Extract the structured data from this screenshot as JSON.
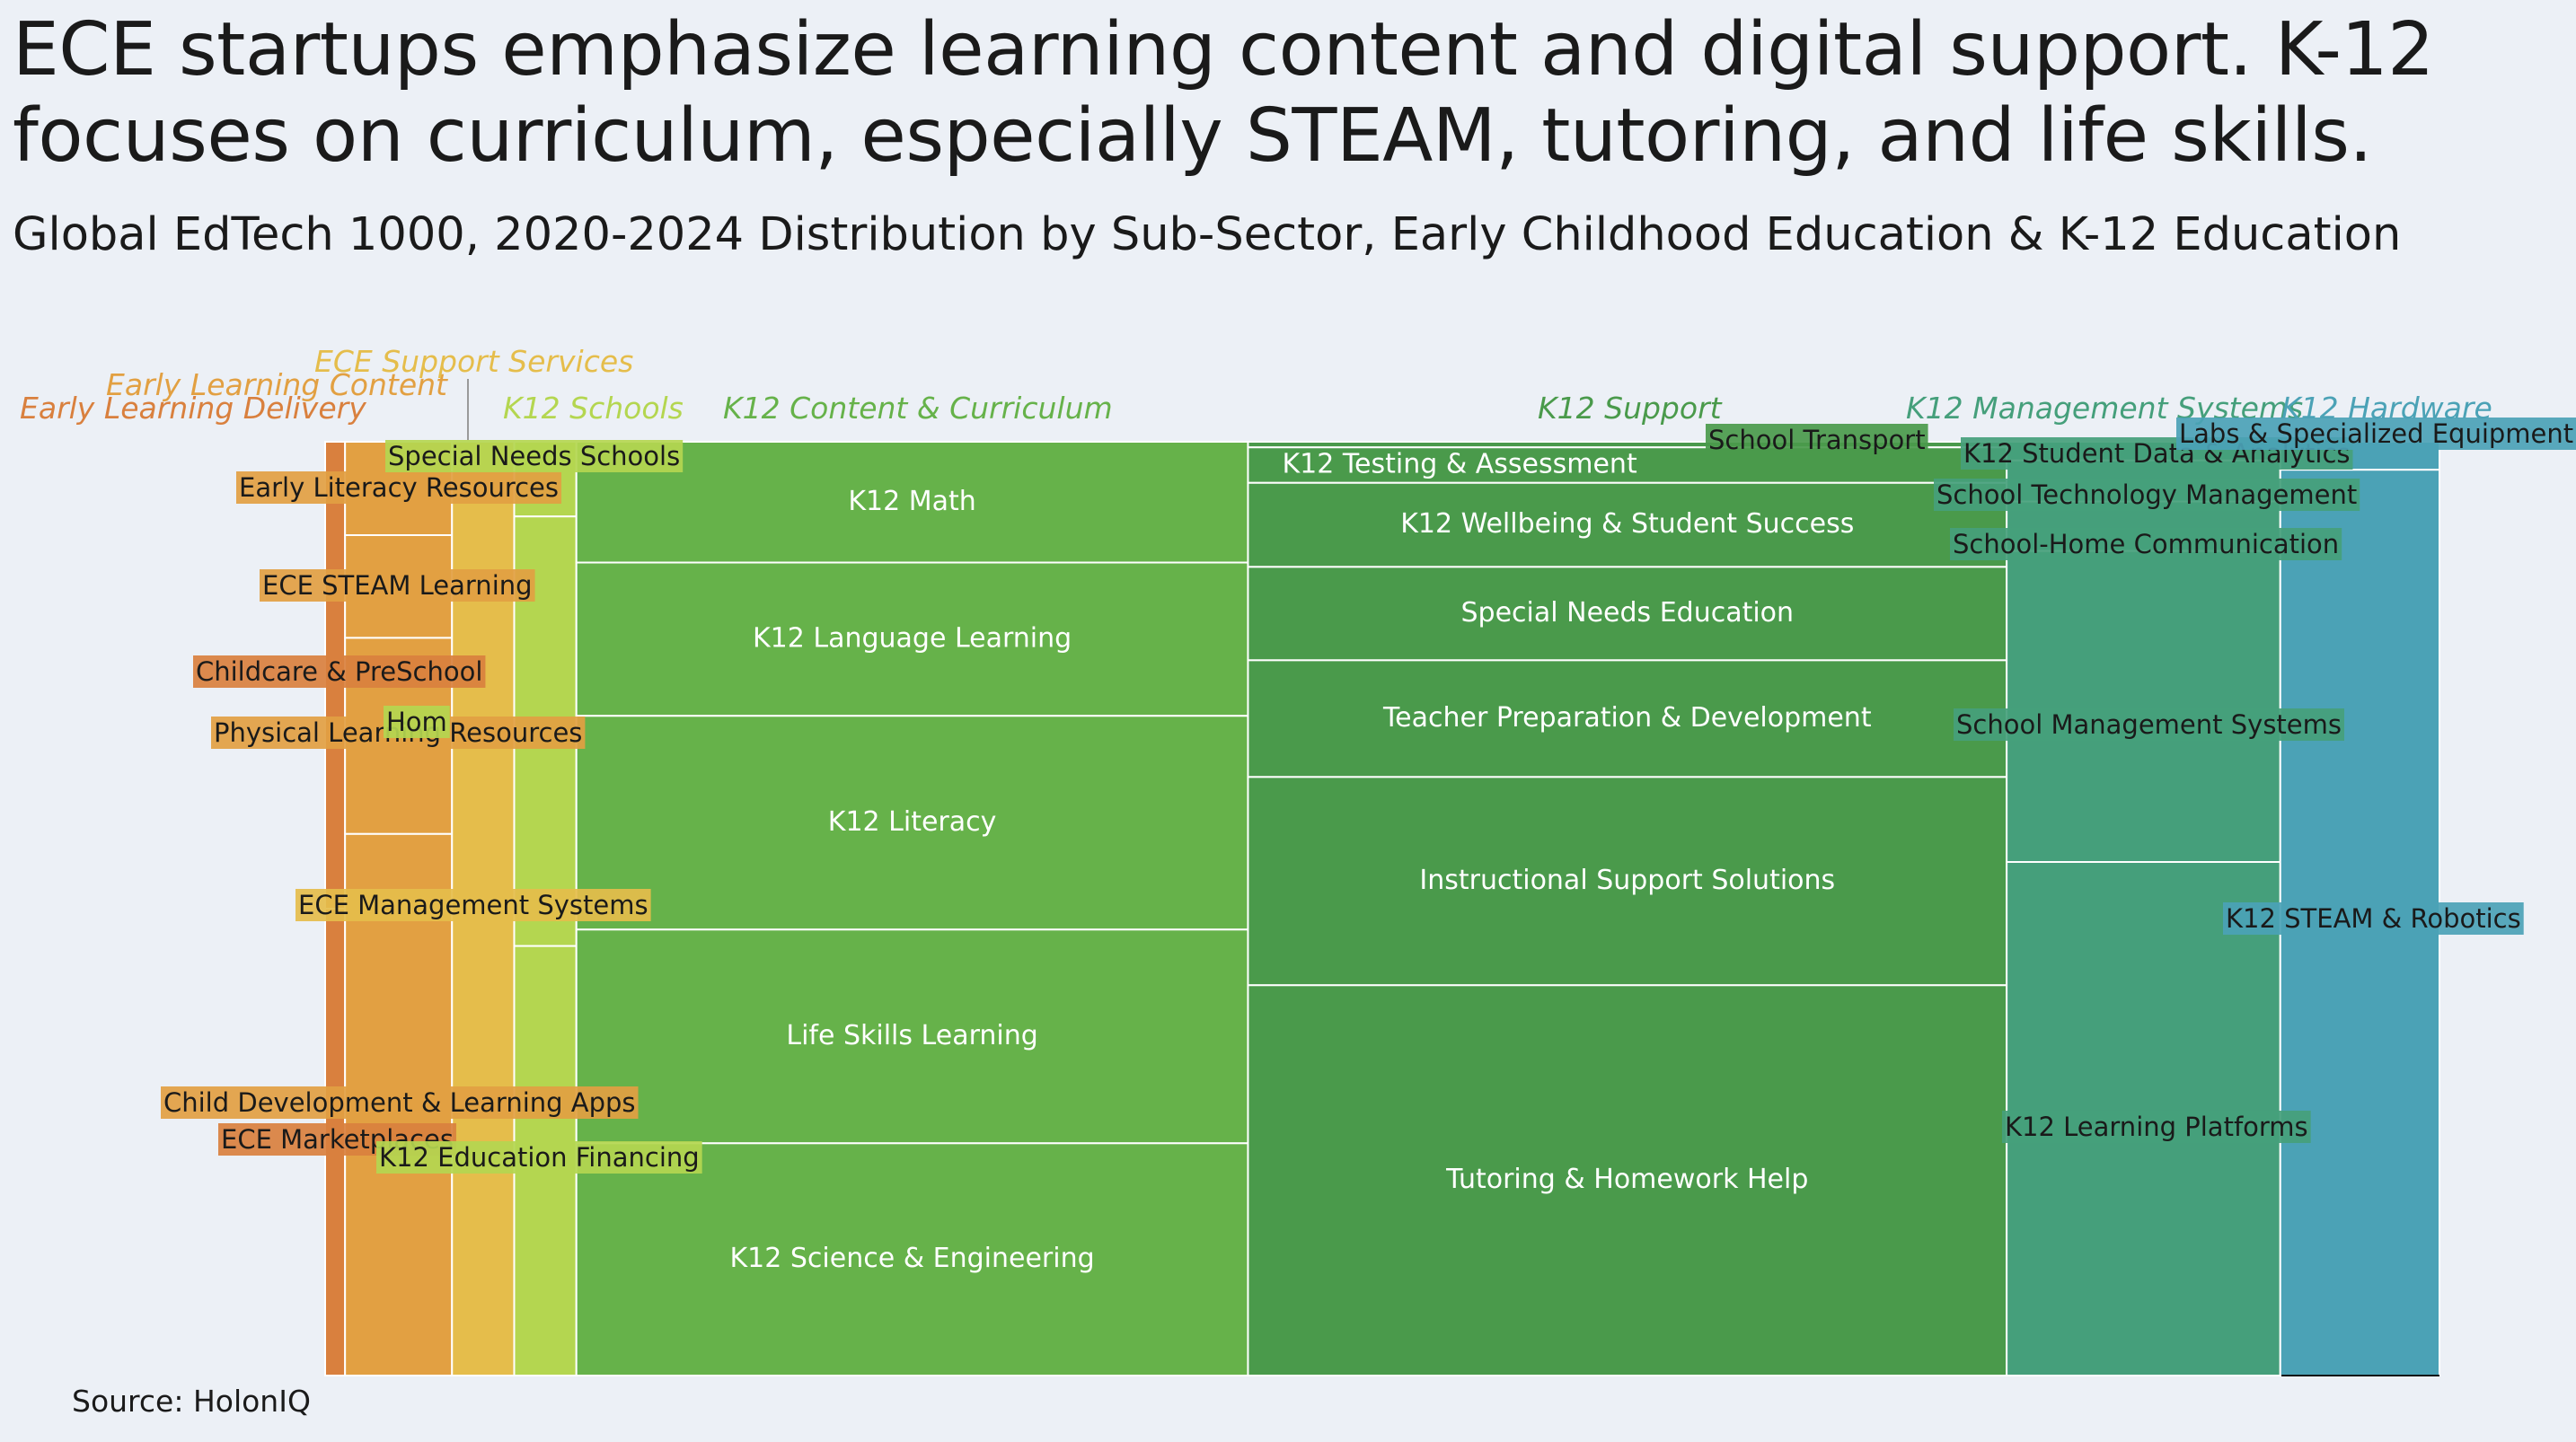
{
  "title": "ECE startups emphasize learning content and digital support. K-12 focuses on curriculum, especially STEAM, tutoring, and life skills.",
  "subtitle": "Global EdTech 1000, 2020-2024 Distribution by Sub-Sector, Early Childhood Education & K-12 Education",
  "source": "Source: HolonIQ",
  "chart_data": {
    "type": "treemap",
    "title": "ECE startups emphasize learning content and digital support. K-12 focuses on curriculum, especially STEAM, tutoring, and life skills.",
    "subtitle": "Global EdTech 1000, 2020-2024 Distribution by Sub-Sector, Early Childhood Education & K-12 Education",
    "groups": [
      {
        "name": "Early Learning Delivery",
        "color": "#d9803e",
        "share": 0.008,
        "items": [
          {
            "name": "Childcare & PreSchool",
            "share": 0.5
          },
          {
            "name": "ECE Marketplaces",
            "share": 0.5
          }
        ]
      },
      {
        "name": "Early Learning Content",
        "color": "#e2a042",
        "share": 0.043,
        "items": [
          {
            "name": "Early Literacy Resources",
            "share": 0.1
          },
          {
            "name": "ECE STEAM Learning",
            "share": 0.11
          },
          {
            "name": "Physical Learning Resources",
            "share": 0.21
          },
          {
            "name": "Child Development & Learning Apps",
            "share": 0.58
          }
        ]
      },
      {
        "name": "ECE Support Services",
        "color": "#e5bd4b",
        "share": 0.025,
        "items": [
          {
            "name": "ECE Management Systems",
            "share": 1.0
          }
        ]
      },
      {
        "name": "K12 Schools",
        "color": "#b4d650",
        "share": 0.025,
        "items": [
          {
            "name": "Special Needs Schools",
            "share": 0.08
          },
          {
            "name": "Hom",
            "share": 0.46
          },
          {
            "name": "K12 Education Financing",
            "share": 0.46
          }
        ]
      },
      {
        "name": "K12 Content & Curriculum",
        "color": "#66b24a",
        "share": 0.27,
        "items": [
          {
            "name": "K12 Math",
            "share": 0.13
          },
          {
            "name": "K12 Language Learning",
            "share": 0.165
          },
          {
            "name": "K12 Literacy",
            "share": 0.23
          },
          {
            "name": "Life Skills Learning",
            "share": 0.23
          },
          {
            "name": "K12 Science & Engineering",
            "share": 0.25
          }
        ]
      },
      {
        "name": "K12 Support",
        "color": "#4a9a4b",
        "share": 0.305,
        "items": [
          {
            "name": "School Transport",
            "share": 0.006
          },
          {
            "name": "K12 Testing & Assessment",
            "share": 0.038
          },
          {
            "name": "K12 Wellbeing & Student Success",
            "share": 0.09
          },
          {
            "name": "Special Needs Education",
            "share": 0.1
          },
          {
            "name": "Teacher Preparation & Development",
            "share": 0.125
          },
          {
            "name": "Instructional Support Solutions",
            "share": 0.223
          },
          {
            "name": "Tutoring & Homework Help",
            "share": 0.418
          }
        ]
      },
      {
        "name": "K12 Management Systems",
        "color": "#459f7b",
        "share": 0.11,
        "items": [
          {
            "name": "K12 Student Data & Analytics",
            "share": 0.02
          },
          {
            "name": "School Technology Management",
            "share": 0.044
          },
          {
            "name": "School-Home Communication",
            "share": 0.053
          },
          {
            "name": "School Management Systems",
            "share": 0.333
          },
          {
            "name": "K12 Learning Platforms",
            "share": 0.55
          }
        ]
      },
      {
        "name": "K12 Hardware",
        "color": "#4ba2b6",
        "share": 0.064,
        "items": [
          {
            "name": "Labs & Specialized Equipment",
            "share": 0.03
          },
          {
            "name": "K12 STEAM & Robotics",
            "share": 0.97
          }
        ]
      }
    ]
  }
}
